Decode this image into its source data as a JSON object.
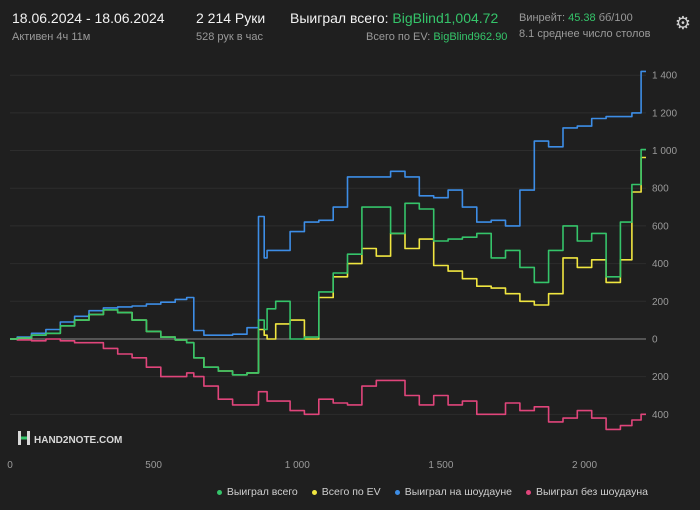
{
  "header": {
    "date_range": "18.06.2024 - 18.06.2024",
    "active_time": "Активен 4ч 11м",
    "hands": "2 214 Руки",
    "hands_per_hour": "528 рук в час",
    "won_label": "Выиграл всего:",
    "won_value": "BigBlind1,004.72",
    "ev_label": "Всего по EV:",
    "ev_value": "BigBlind962.90",
    "winrate_label": "Винрейт:",
    "winrate_value": "45.38",
    "winrate_unit": "бб/100",
    "avg_tables": "8.1 среднее число столов",
    "settings_icon": "gear-icon"
  },
  "watermark": "HAND2NOTE.COM",
  "colors": {
    "background": "#1f1f1f",
    "won": "#35c46a",
    "ev": "#f0e640",
    "showdown": "#3d8de6",
    "nonshowdown": "#e0457b"
  },
  "chart_data": {
    "type": "line",
    "xlim": [
      0,
      2214
    ],
    "ylim": [
      -600,
      1470
    ],
    "x_ticks": [
      0,
      500,
      1000,
      1500,
      2000
    ],
    "x_tick_labels": [
      "0",
      "500",
      "1 000",
      "1 500",
      "2 000"
    ],
    "y_ticks": [
      -400,
      -200,
      0,
      200,
      400,
      600,
      800,
      1000,
      1200,
      1400
    ],
    "y_tick_labels": [
      "400",
      "200",
      "0",
      "200",
      "400",
      "600",
      "800",
      "1 000",
      "1 200",
      "1 400"
    ],
    "grid": "horizontal",
    "legend_position": "bottom-right",
    "series": [
      {
        "name": "Выиграл всего",
        "color": "#35c46a",
        "x": [
          0,
          50,
          100,
          150,
          200,
          250,
          300,
          350,
          400,
          450,
          500,
          550,
          600,
          630,
          650,
          700,
          750,
          800,
          850,
          880,
          890,
          900,
          950,
          1000,
          1050,
          1100,
          1150,
          1200,
          1250,
          1300,
          1350,
          1400,
          1450,
          1500,
          1550,
          1600,
          1650,
          1700,
          1750,
          1800,
          1850,
          1900,
          1950,
          2000,
          2050,
          2100,
          2150,
          2180,
          2214
        ],
        "y": [
          0,
          5,
          20,
          30,
          70,
          100,
          130,
          155,
          140,
          100,
          40,
          10,
          -5,
          -20,
          -100,
          -150,
          -170,
          -190,
          -180,
          100,
          50,
          160,
          200,
          0,
          10,
          250,
          350,
          450,
          700,
          700,
          560,
          720,
          690,
          520,
          530,
          540,
          560,
          430,
          470,
          380,
          300,
          470,
          600,
          520,
          560,
          330,
          620,
          820,
          1005
        ]
      },
      {
        "name": "Всего по EV",
        "color": "#f0e640",
        "x": [
          0,
          50,
          100,
          150,
          200,
          250,
          300,
          350,
          400,
          450,
          500,
          550,
          600,
          630,
          650,
          700,
          750,
          800,
          850,
          880,
          890,
          900,
          950,
          1000,
          1050,
          1100,
          1150,
          1200,
          1250,
          1300,
          1350,
          1400,
          1450,
          1500,
          1550,
          1600,
          1650,
          1700,
          1750,
          1800,
          1850,
          1900,
          1950,
          2000,
          2050,
          2100,
          2150,
          2180,
          2214
        ],
        "y": [
          0,
          5,
          20,
          30,
          70,
          100,
          130,
          155,
          140,
          100,
          40,
          10,
          -5,
          -20,
          -100,
          -150,
          -170,
          -190,
          -180,
          50,
          20,
          0,
          80,
          100,
          0,
          220,
          330,
          400,
          480,
          440,
          560,
          480,
          530,
          390,
          360,
          320,
          280,
          270,
          240,
          200,
          180,
          240,
          430,
          380,
          420,
          300,
          420,
          780,
          963
        ]
      },
      {
        "name": "Выиграл на шоудауне",
        "color": "#3d8de6",
        "x": [
          0,
          50,
          100,
          150,
          200,
          250,
          300,
          350,
          400,
          450,
          500,
          550,
          600,
          630,
          650,
          700,
          750,
          800,
          850,
          880,
          890,
          900,
          950,
          1000,
          1050,
          1100,
          1150,
          1200,
          1250,
          1300,
          1350,
          1400,
          1450,
          1500,
          1550,
          1600,
          1650,
          1700,
          1750,
          1800,
          1850,
          1900,
          1950,
          2000,
          2050,
          2100,
          2150,
          2180,
          2214
        ],
        "y": [
          0,
          10,
          30,
          50,
          90,
          120,
          150,
          165,
          170,
          175,
          185,
          195,
          210,
          220,
          45,
          20,
          20,
          25,
          60,
          650,
          430,
          470,
          470,
          570,
          620,
          630,
          700,
          860,
          860,
          860,
          890,
          860,
          760,
          750,
          790,
          700,
          620,
          630,
          600,
          790,
          1050,
          1020,
          1120,
          1130,
          1170,
          1180,
          1180,
          1200,
          1420
        ]
      },
      {
        "name": "Выиграл без шоудауна",
        "color": "#e0457b",
        "x": [
          0,
          50,
          100,
          150,
          200,
          250,
          300,
          350,
          400,
          450,
          500,
          550,
          600,
          630,
          650,
          700,
          750,
          800,
          850,
          880,
          890,
          900,
          950,
          1000,
          1050,
          1100,
          1150,
          1200,
          1250,
          1300,
          1350,
          1400,
          1450,
          1500,
          1550,
          1600,
          1650,
          1700,
          1750,
          1800,
          1850,
          1900,
          1950,
          2000,
          2050,
          2100,
          2150,
          2180,
          2214
        ],
        "y": [
          0,
          -5,
          -10,
          0,
          -10,
          -20,
          -20,
          -50,
          -80,
          -100,
          -150,
          -200,
          -200,
          -180,
          -200,
          -250,
          -320,
          -350,
          -350,
          -280,
          -280,
          -330,
          -330,
          -380,
          -400,
          -320,
          -340,
          -350,
          -250,
          -220,
          -220,
          -300,
          -350,
          -300,
          -350,
          -330,
          -400,
          -400,
          -340,
          -380,
          -360,
          -440,
          -420,
          -380,
          -420,
          -480,
          -460,
          -430,
          -400
        ]
      }
    ]
  }
}
